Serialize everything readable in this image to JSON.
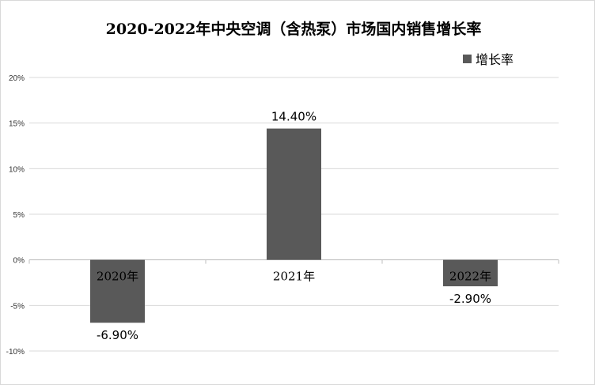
{
  "chart_data": {
    "type": "bar",
    "title": "2020-2022年中央空调（含热泵）市场国内销售增长率",
    "categories": [
      "2020年",
      "2021年",
      "2022年"
    ],
    "series": [
      {
        "name": "增长率",
        "values": [
          -6.9,
          14.4,
          -2.9
        ],
        "color": "#595959"
      }
    ],
    "data_labels": [
      "-6.90%",
      "14.40%",
      "-2.90%"
    ],
    "yticks": [
      "20%",
      "15%",
      "10%",
      "5%",
      "0%",
      "-5%",
      "-10%"
    ],
    "ylim": [
      -10,
      20
    ],
    "grid": true,
    "legend_position": "top-right"
  }
}
